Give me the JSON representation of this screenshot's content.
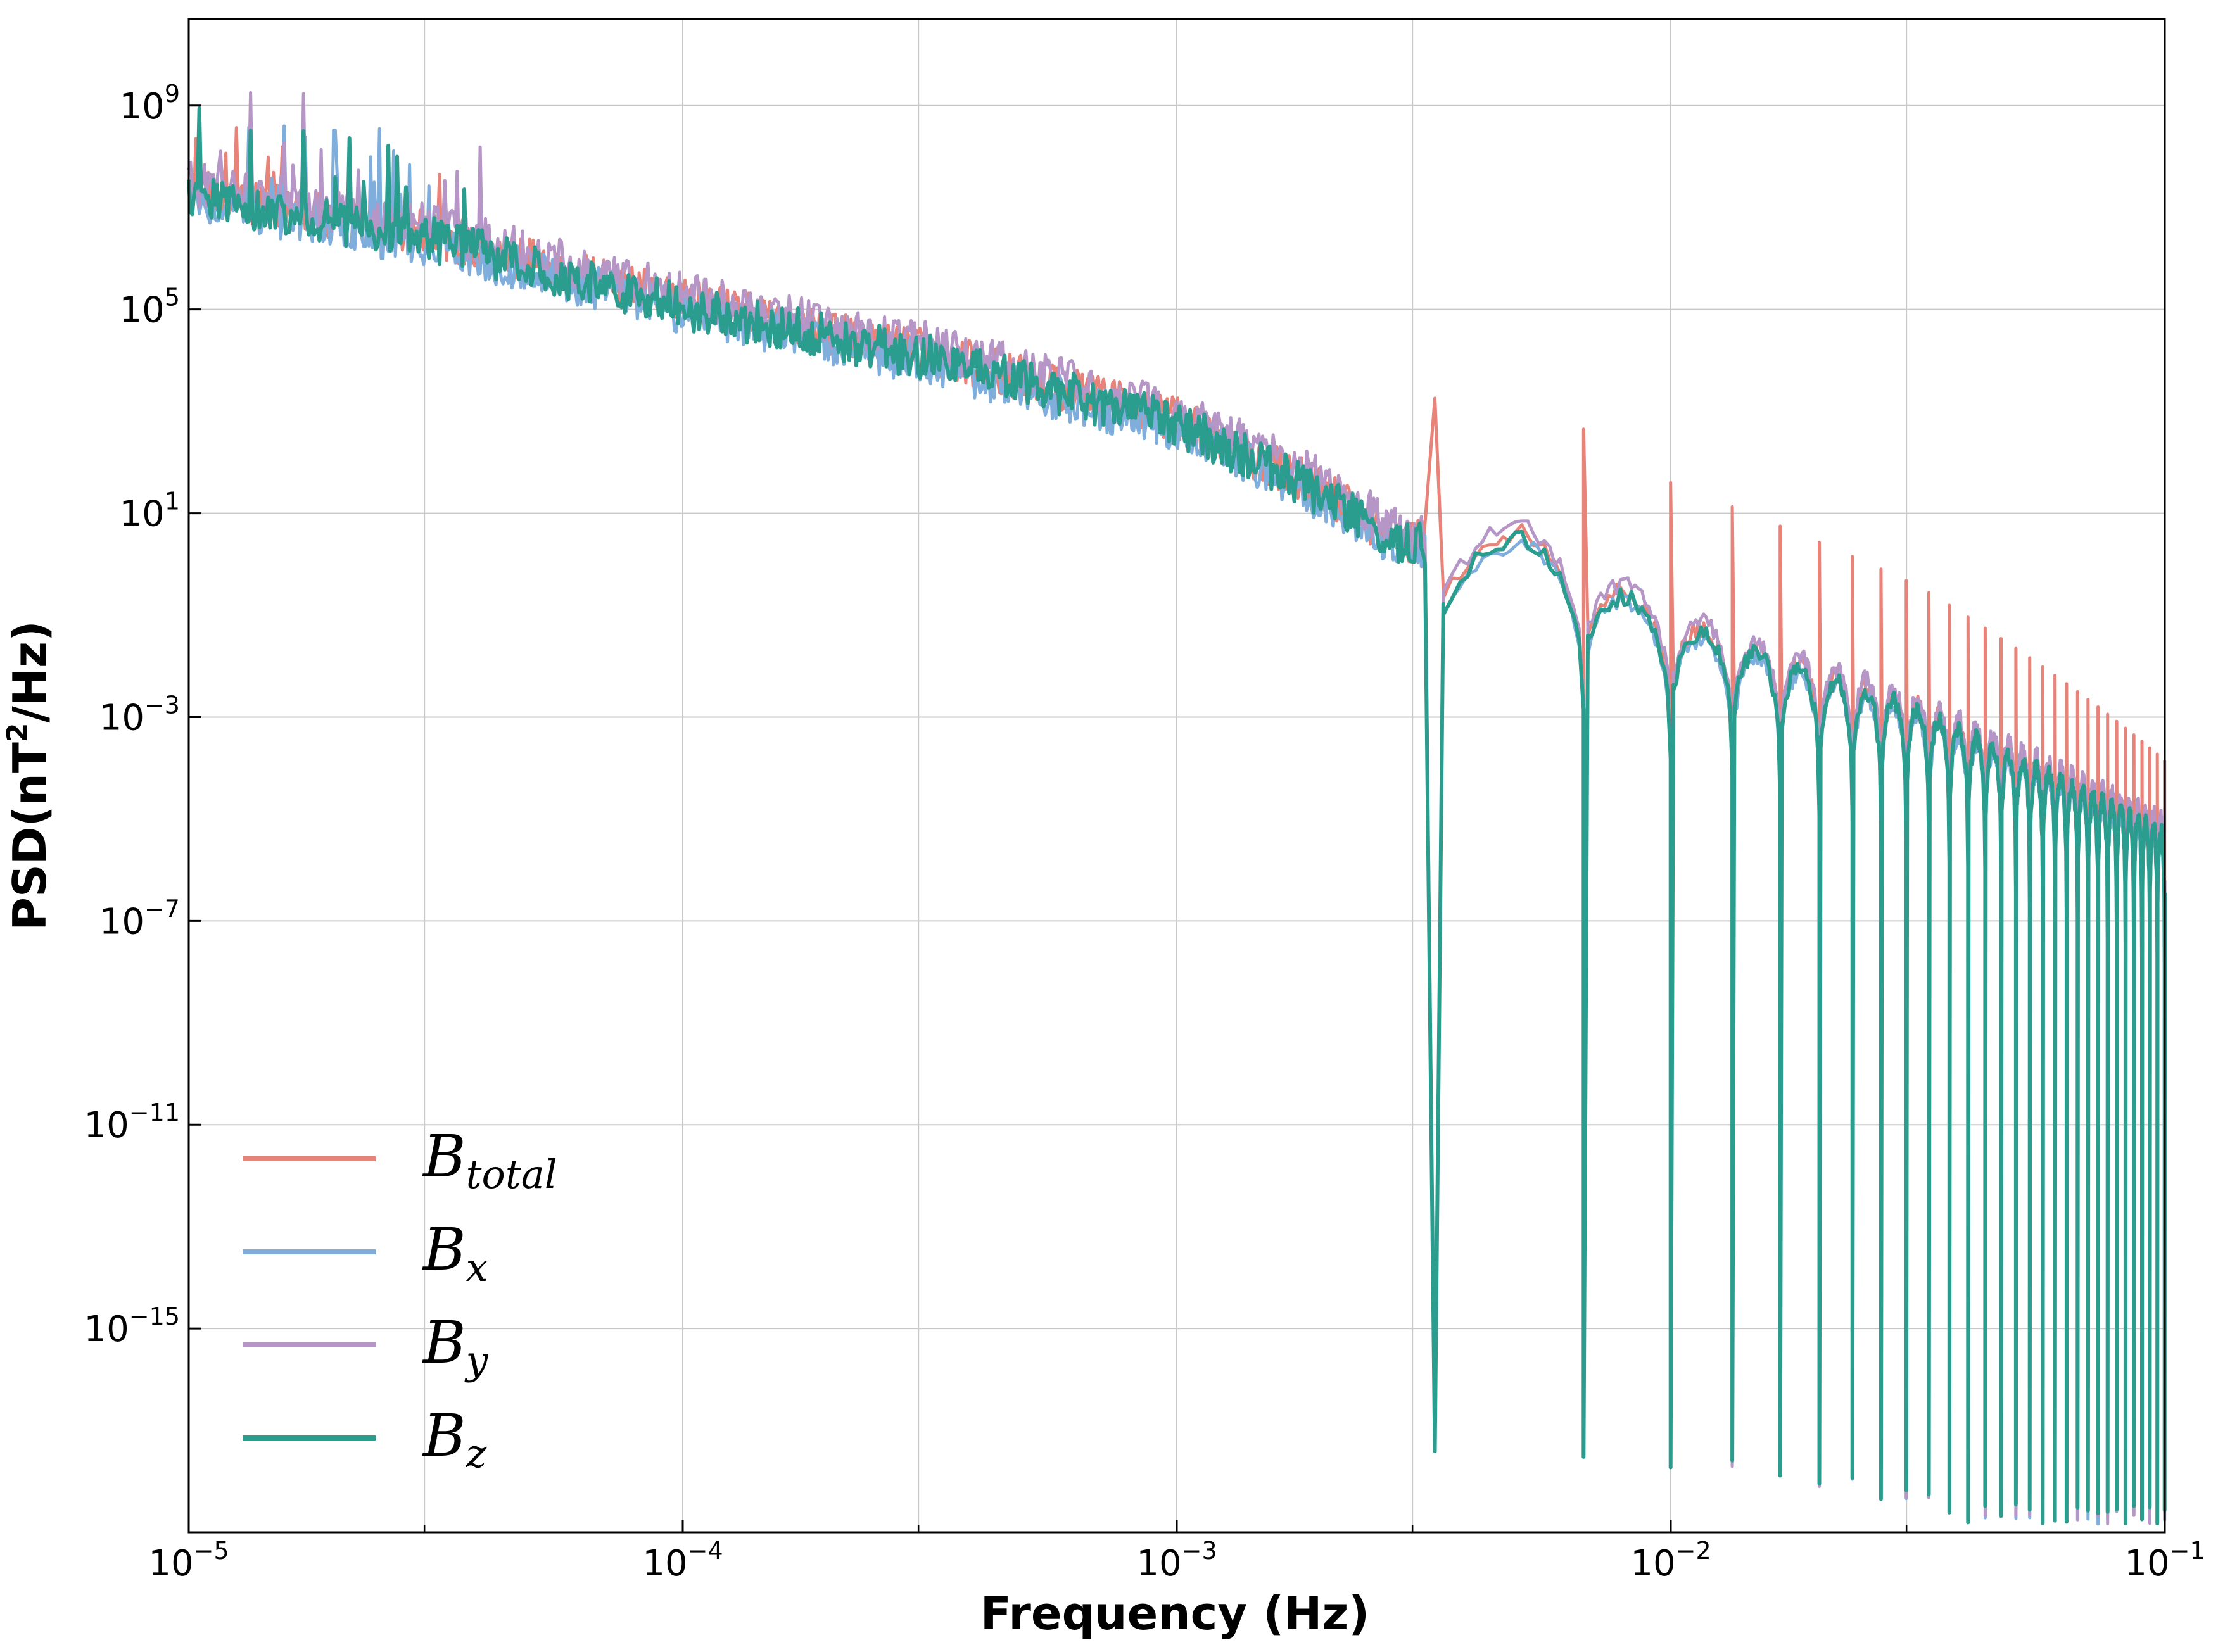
{
  "chart_data": {
    "type": "line",
    "title": "",
    "xlabel": "Frequency (Hz)",
    "ylabel": "PSD(nT²/Hz)",
    "ylabel_parts": {
      "prefix": "PSD(nT",
      "sup": "2",
      "suffix": "/Hz)"
    },
    "xscale": "log",
    "yscale": "log",
    "xlim": [
      1e-05,
      0.1
    ],
    "ylim_exp": [
      -19,
      10.7
    ],
    "grid": true,
    "legend_placement": "lower-left",
    "x_ticks": [
      {
        "base": "10",
        "exp": "−5",
        "value": 1e-05
      },
      {
        "base": "10",
        "exp": "−4",
        "value": 0.0001
      },
      {
        "base": "10",
        "exp": "−3",
        "value": 0.001
      },
      {
        "base": "10",
        "exp": "−2",
        "value": 0.01
      },
      {
        "base": "10",
        "exp": "−1",
        "value": 0.1
      }
    ],
    "y_ticks": [
      {
        "base": "10",
        "exp": "9",
        "value_exp": 9
      },
      {
        "base": "10",
        "exp": "5",
        "value_exp": 5
      },
      {
        "base": "10",
        "exp": "1",
        "value_exp": 1
      },
      {
        "base": "10",
        "exp": "−3",
        "value_exp": -3
      },
      {
        "base": "10",
        "exp": "−7",
        "value_exp": -7
      },
      {
        "base": "10",
        "exp": "−11",
        "value_exp": -11
      },
      {
        "base": "10",
        "exp": "−15",
        "value_exp": -15
      }
    ],
    "x_minor_ticks": [
      3e-05,
      0.0003,
      0.003,
      0.03
    ],
    "orbital_notch_frequency_hz": 0.00333,
    "trend_points_log10": [
      {
        "logf": -5.0,
        "logpsd": 7.3
      },
      {
        "logf": -4.5,
        "logpsd": 6.4
      },
      {
        "logf": -4.0,
        "logpsd": 5.1
      },
      {
        "logf": -3.5,
        "logpsd": 4.1
      },
      {
        "logf": -3.0,
        "logpsd": 2.8
      },
      {
        "logf": -2.7,
        "logpsd": 1.4
      },
      {
        "logf": -2.55,
        "logpsd": 0.4
      },
      {
        "logf": -2.3,
        "logpsd": 0.6
      },
      {
        "logf": -2.0,
        "logpsd": -1.1
      },
      {
        "logf": -1.5,
        "logpsd": -2.8
      },
      {
        "logf": -1.0,
        "logpsd": -5.2
      }
    ],
    "series": [
      {
        "name": "B_total",
        "legend_base": "B",
        "legend_sub": "total",
        "color": "#e8837a"
      },
      {
        "name": "B_x",
        "legend_base": "B",
        "legend_sub": "x",
        "color": "#7faedc"
      },
      {
        "name": "B_y",
        "legend_base": "B",
        "legend_sub": "y",
        "color": "#b596c6"
      },
      {
        "name": "B_z",
        "legend_base": "B",
        "legend_sub": "z",
        "color": "#2a9d8f"
      }
    ]
  }
}
